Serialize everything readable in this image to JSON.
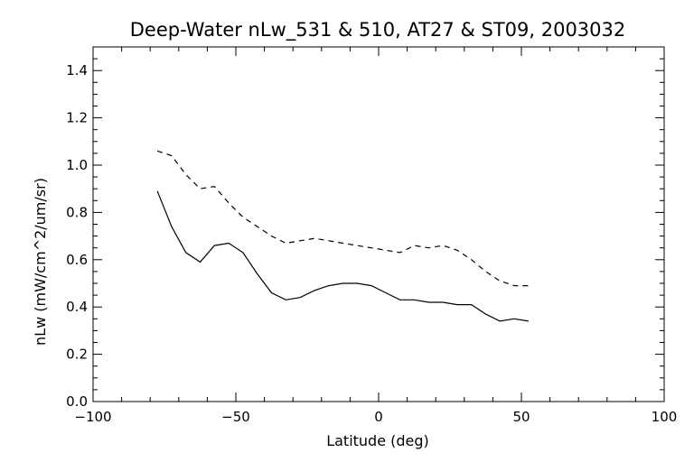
{
  "chart_data": {
    "type": "line",
    "title": "Deep-Water nLw_531 & 510, AT27 & ST09, 2003032",
    "xlabel": "Latitude (deg)",
    "ylabel": "nLw (mW/cm^2/um/sr)",
    "xlim": [
      -100,
      100
    ],
    "ylim": [
      0.0,
      1.5
    ],
    "x_ticks": [
      -100,
      -50,
      0,
      50,
      100
    ],
    "x_tick_labels": [
      "−100",
      "−50",
      "0",
      "50",
      "100"
    ],
    "y_ticks": [
      0.0,
      0.2,
      0.4,
      0.6,
      0.8,
      1.0,
      1.2,
      1.4
    ],
    "y_tick_labels": [
      "0.0",
      "0.2",
      "0.4",
      "0.6",
      "0.8",
      "1.0",
      "1.2",
      "1.4"
    ],
    "grid": false,
    "legend": "none",
    "series": [
      {
        "style": "solid",
        "color": "#000000",
        "x": [
          -77.5,
          -72.5,
          -67.5,
          -62.5,
          -57.5,
          -52.5,
          -47.5,
          -42.5,
          -37.5,
          -32.5,
          -27.5,
          -22.5,
          -17.5,
          -12.5,
          -7.5,
          -2.5,
          2.5,
          7.5,
          12.5,
          17.5,
          22.5,
          27.5,
          32.5,
          37.5,
          42.5,
          47.5,
          52.5
        ],
        "y": [
          0.89,
          0.74,
          0.63,
          0.59,
          0.66,
          0.67,
          0.63,
          0.54,
          0.46,
          0.43,
          0.44,
          0.47,
          0.49,
          0.5,
          0.5,
          0.49,
          0.46,
          0.43,
          0.43,
          0.42,
          0.42,
          0.41,
          0.41,
          0.37,
          0.34,
          0.35,
          0.34
        ]
      },
      {
        "style": "dashed",
        "color": "#000000",
        "x": [
          -77.5,
          -72.5,
          -67.5,
          -62.5,
          -57.5,
          -52.5,
          -47.5,
          -42.5,
          -37.5,
          -32.5,
          -27.5,
          -22.5,
          -17.5,
          -12.5,
          -7.5,
          -2.5,
          2.5,
          7.5,
          12.5,
          17.5,
          22.5,
          27.5,
          32.5,
          37.5,
          42.5,
          47.5,
          52.5
        ],
        "y": [
          1.06,
          1.04,
          0.96,
          0.9,
          0.91,
          0.84,
          0.78,
          0.74,
          0.7,
          0.67,
          0.68,
          0.69,
          0.68,
          0.67,
          0.66,
          0.65,
          0.64,
          0.63,
          0.66,
          0.65,
          0.66,
          0.64,
          0.6,
          0.55,
          0.51,
          0.49,
          0.49
        ]
      }
    ]
  }
}
